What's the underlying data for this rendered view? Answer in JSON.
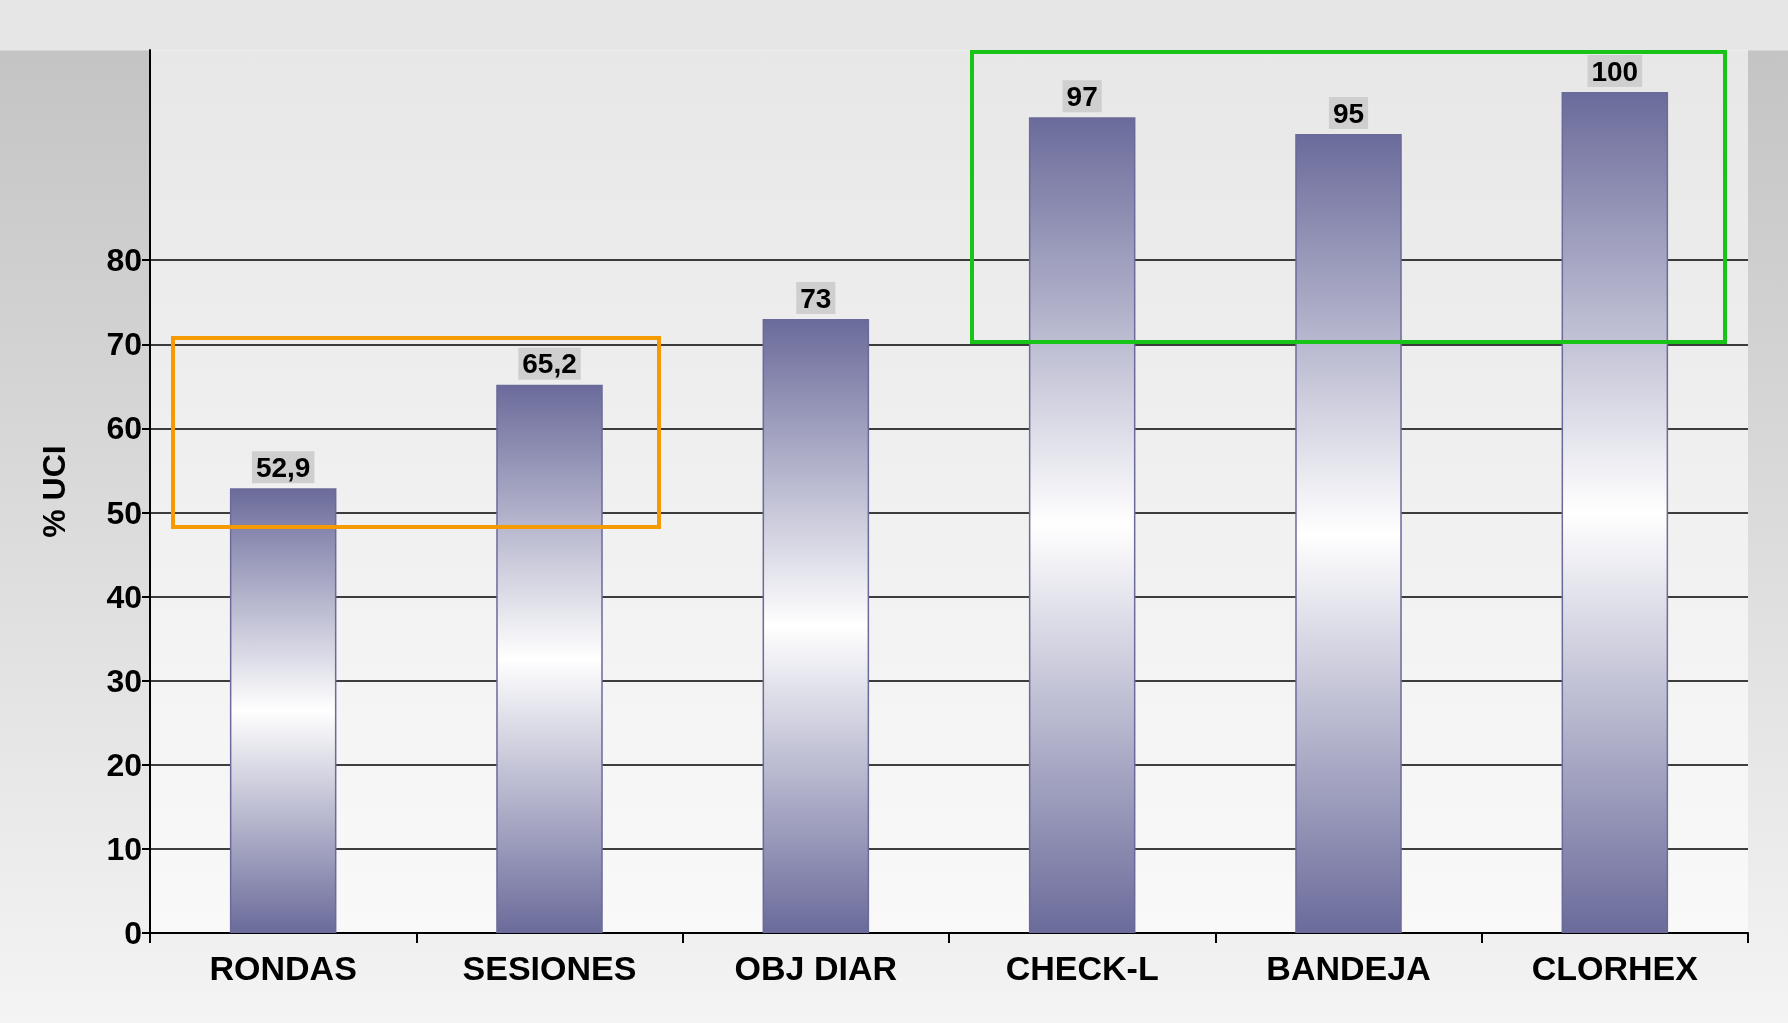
{
  "chart_data": {
    "type": "bar",
    "ylabel": "% UCI",
    "categories": [
      "RONDAS",
      "SESIONES",
      "OBJ DIAR",
      "CHECK-L",
      "BANDEJA",
      "CLORHEX"
    ],
    "values": [
      52.9,
      65.2,
      73,
      97,
      95,
      100
    ],
    "value_labels": [
      "52,9",
      "65,2",
      "73",
      "97",
      "95",
      "100"
    ],
    "color": "#6b6b9b",
    "ylim": [
      0,
      105
    ],
    "yticks": [
      0,
      10,
      20,
      30,
      40,
      50,
      60,
      70,
      80
    ],
    "grid": "y"
  }
}
